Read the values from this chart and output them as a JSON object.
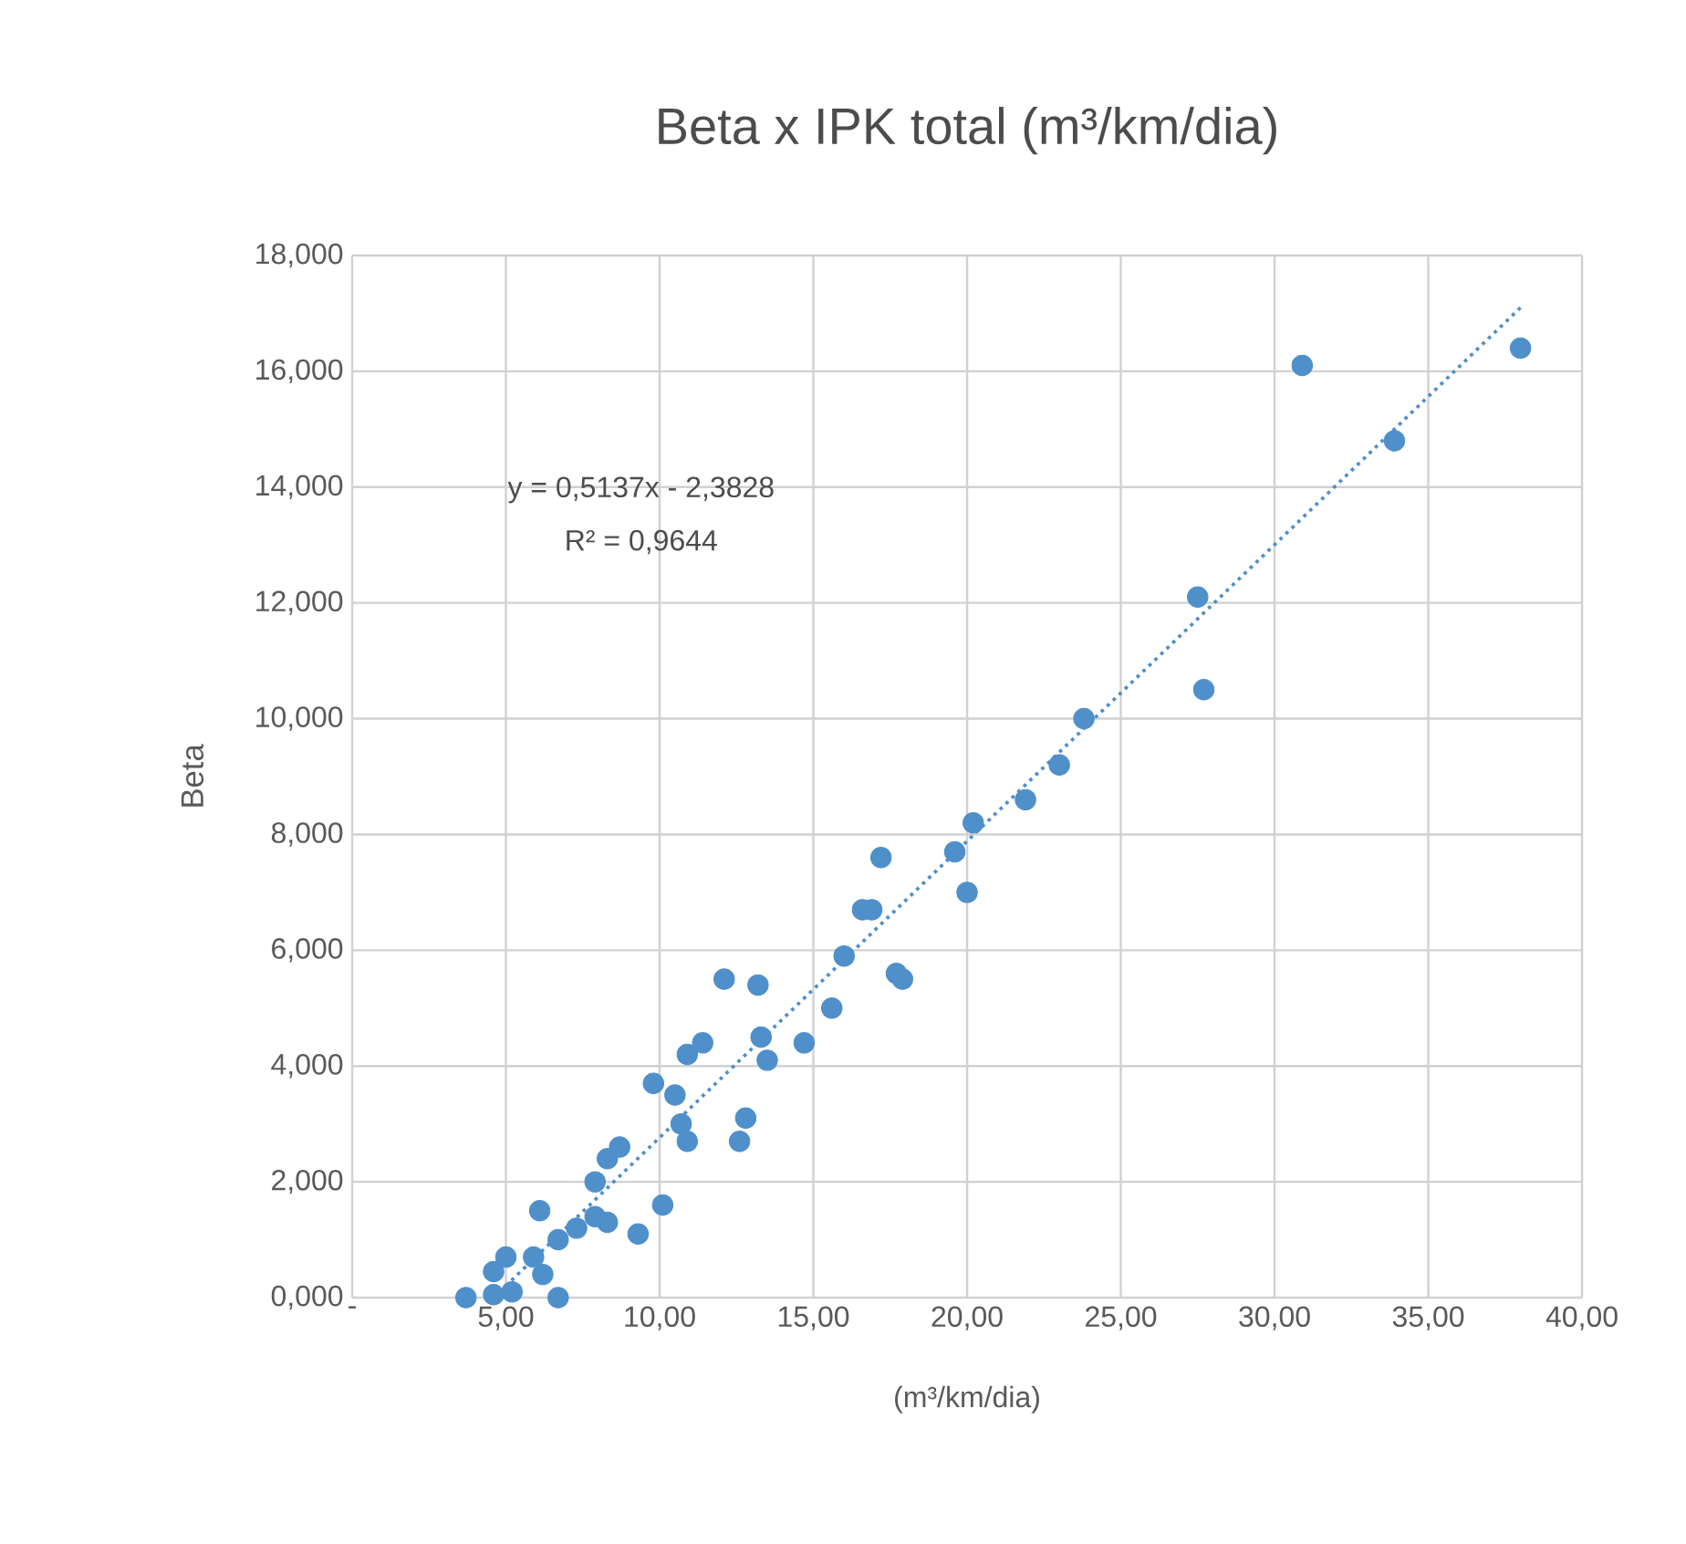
{
  "chart_data": {
    "type": "scatter",
    "title": "Beta x IPK total (m³/km/dia)",
    "xlabel": "(m³/km/dia)",
    "ylabel": "Beta",
    "xlim": [
      0,
      40
    ],
    "ylim": [
      0,
      18
    ],
    "xticks": [
      {
        "value": 0,
        "label": "-"
      },
      {
        "value": 5,
        "label": "5,00"
      },
      {
        "value": 10,
        "label": "10,00"
      },
      {
        "value": 15,
        "label": "15,00"
      },
      {
        "value": 20,
        "label": "20,00"
      },
      {
        "value": 25,
        "label": "25,00"
      },
      {
        "value": 30,
        "label": "30,00"
      },
      {
        "value": 35,
        "label": "35,00"
      },
      {
        "value": 40,
        "label": "40,00"
      }
    ],
    "yticks": [
      {
        "value": 0,
        "label": "0,000"
      },
      {
        "value": 2,
        "label": "2,000"
      },
      {
        "value": 4,
        "label": "4,000"
      },
      {
        "value": 6,
        "label": "6,000"
      },
      {
        "value": 8,
        "label": "8,000"
      },
      {
        "value": 10,
        "label": "10,000"
      },
      {
        "value": 12,
        "label": "12,000"
      },
      {
        "value": 14,
        "label": "14,000"
      },
      {
        "value": 16,
        "label": "16,000"
      },
      {
        "value": 18,
        "label": "18,000"
      }
    ],
    "grid": true,
    "series": [
      {
        "marker": "circle",
        "color": "#4f8fca",
        "x": [
          3.7,
          4.6,
          5.2,
          5.0,
          4.6,
          6.7,
          6.1,
          5.9,
          6.2,
          6.7,
          7.3,
          7.9,
          8.3,
          7.9,
          8.3,
          8.7,
          9.3,
          10.1,
          9.8,
          10.5,
          10.7,
          10.9,
          10.9,
          11.4,
          12.1,
          13.2,
          12.8,
          12.6,
          13.3,
          13.5,
          14.7,
          15.6,
          16.0,
          17.7,
          17.9,
          16.6,
          16.9,
          17.2,
          19.6,
          20.0,
          20.2,
          21.9,
          23.0,
          23.8,
          27.5,
          27.7,
          30.9,
          33.9,
          38.0
        ],
        "values": [
          0.0,
          0.05,
          0.1,
          0.7,
          0.45,
          0.0,
          1.5,
          0.7,
          0.4,
          1.0,
          1.2,
          1.4,
          1.3,
          2.0,
          2.4,
          2.6,
          1.1,
          1.6,
          3.7,
          3.5,
          3.0,
          2.7,
          4.2,
          4.4,
          5.5,
          5.4,
          3.1,
          2.7,
          4.5,
          4.1,
          4.4,
          5.0,
          5.9,
          5.6,
          5.5,
          6.7,
          6.7,
          7.6,
          7.7,
          7.0,
          8.2,
          8.6,
          9.2,
          10.0,
          12.1,
          10.5,
          16.1,
          14.8,
          16.4
        ]
      },
      {
        "type": "line",
        "marker": "none",
        "line_style": "dotted",
        "color": "#4f8fca",
        "x": [
          4.6,
          38.0
        ],
        "values": [
          0.0,
          17.1
        ]
      }
    ],
    "annotations": [
      "y = 0,5137x - 2,3828",
      "R² = 0,9644"
    ]
  }
}
